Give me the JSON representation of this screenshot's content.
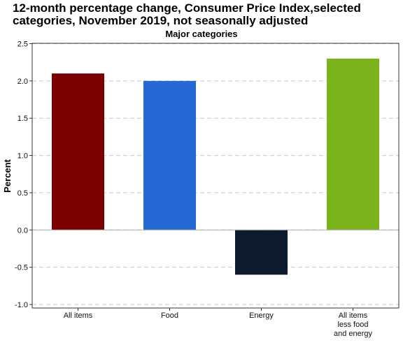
{
  "chart_data": {
    "type": "bar",
    "title_lines": [
      "12-month percentage change, Consumer Price Index,selected",
      "categories, November 2019, not seasonally adjusted"
    ],
    "subtitle": "Major categories",
    "ylabel": "Percent",
    "xlabel": "",
    "ylim": [
      -1.0,
      2.5
    ],
    "yticks": [
      "2.5",
      "2.0",
      "1.5",
      "1.0",
      "0.5",
      "0.0",
      "-0.5",
      "-1.0"
    ],
    "ytick_values": [
      2.5,
      2.0,
      1.5,
      1.0,
      0.5,
      0.0,
      -0.5,
      -1.0
    ],
    "grid": true,
    "categories": [
      [
        "All items"
      ],
      [
        "Food"
      ],
      [
        "Energy"
      ],
      [
        "All items",
        "less food",
        "and energy"
      ]
    ],
    "values": [
      2.1,
      2.0,
      -0.6,
      2.3
    ],
    "colors": [
      "#7b0000",
      "#2669d4",
      "#0d1a2d",
      "#7ab31c"
    ]
  }
}
